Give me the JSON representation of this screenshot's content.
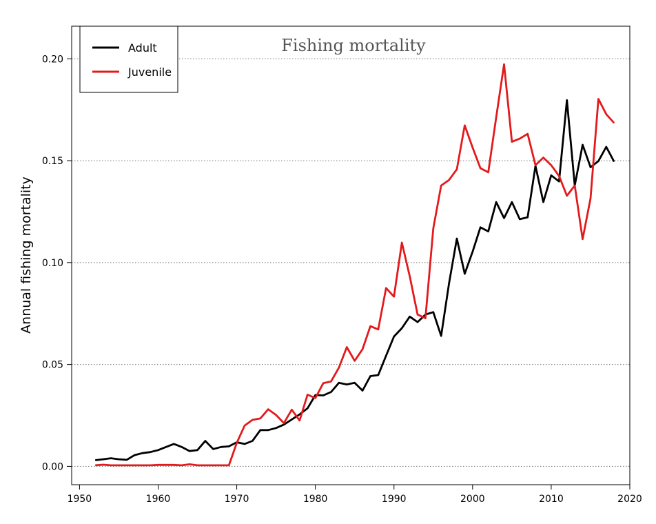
{
  "chart_data": {
    "type": "line",
    "title": "Fishing mortality",
    "xlabel": "",
    "ylabel": "Annual fishing mortality",
    "xlim": [
      1949,
      2020
    ],
    "ylim": [
      -0.009,
      0.216
    ],
    "xticks": [
      1950,
      1960,
      1970,
      1980,
      1990,
      2000,
      2010,
      2020
    ],
    "yticks": [
      0.0,
      0.05,
      0.1,
      0.15,
      0.2
    ],
    "ytick_labels": [
      "0.00",
      "0.05",
      "0.10",
      "0.15",
      "0.20"
    ],
    "grid": "horizontal dotted",
    "legend_position": "top-left",
    "x": [
      1952,
      1953,
      1954,
      1955,
      1956,
      1957,
      1958,
      1959,
      1960,
      1961,
      1962,
      1963,
      1964,
      1965,
      1966,
      1967,
      1968,
      1969,
      1970,
      1971,
      1972,
      1973,
      1974,
      1975,
      1976,
      1977,
      1978,
      1979,
      1980,
      1981,
      1982,
      1983,
      1984,
      1985,
      1986,
      1987,
      1988,
      1989,
      1990,
      1991,
      1992,
      1993,
      1994,
      1995,
      1996,
      1997,
      1998,
      1999,
      2000,
      2001,
      2002,
      2003,
      2004,
      2005,
      2006,
      2007,
      2008,
      2009,
      2010,
      2011,
      2012,
      2013,
      2014,
      2015,
      2016,
      2017,
      2018
    ],
    "series": [
      {
        "name": "Adult",
        "color": "#000000",
        "values": [
          0.003,
          0.0035,
          0.004,
          0.0035,
          0.0032,
          0.0055,
          0.0065,
          0.007,
          0.008,
          0.0095,
          0.011,
          0.0095,
          0.0075,
          0.008,
          0.0125,
          0.0085,
          0.0095,
          0.0098,
          0.0118,
          0.011,
          0.0125,
          0.0178,
          0.0178,
          0.0188,
          0.0205,
          0.023,
          0.0255,
          0.0285,
          0.035,
          0.0348,
          0.0365,
          0.041,
          0.0402,
          0.041,
          0.0372,
          0.0443,
          0.0448,
          0.0543,
          0.0637,
          0.0678,
          0.0735,
          0.0708,
          0.0745,
          0.0757,
          0.064,
          0.0897,
          0.1118,
          0.0945,
          0.1053,
          0.1173,
          0.1153,
          0.1297,
          0.1218,
          0.1297,
          0.1213,
          0.1222,
          0.1475,
          0.1297,
          0.1428,
          0.1398,
          0.1797,
          0.1378,
          0.1578,
          0.1468,
          0.1498,
          0.1568,
          0.1495
        ]
      },
      {
        "name": "Juvenile",
        "color": "#e31a1c",
        "values": [
          0.0005,
          0.0008,
          0.0005,
          0.0005,
          0.0005,
          0.0005,
          0.0005,
          0.0005,
          0.0007,
          0.0007,
          0.0007,
          0.0005,
          0.001,
          0.0005,
          0.0005,
          0.0005,
          0.0005,
          0.0005,
          0.0115,
          0.02,
          0.0228,
          0.0235,
          0.028,
          0.0252,
          0.0212,
          0.0278,
          0.0225,
          0.0352,
          0.0335,
          0.0408,
          0.0417,
          0.0485,
          0.0585,
          0.0518,
          0.0575,
          0.0688,
          0.0672,
          0.0875,
          0.0833,
          0.1098,
          0.0933,
          0.0745,
          0.0727,
          0.1168,
          0.1378,
          0.1405,
          0.1458,
          0.1673,
          0.1565,
          0.1463,
          0.1443,
          0.1713,
          0.1973,
          0.1593,
          0.1608,
          0.1632,
          0.1478,
          0.1515,
          0.1478,
          0.1425,
          0.1328,
          0.1378,
          0.1115,
          0.1315,
          0.1803,
          0.1728,
          0.1685
        ]
      }
    ]
  }
}
